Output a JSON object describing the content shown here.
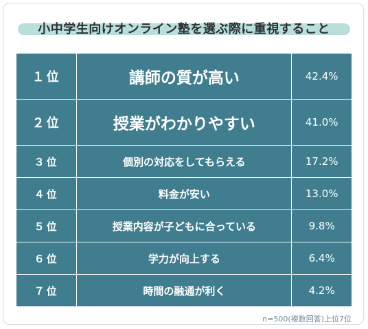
{
  "title": "小中学生向けオンライン塾を選ぶ際に重視すること",
  "rows": [
    {
      "rank": "１位",
      "item": "講師の質が高い",
      "pct": "42.4%"
    },
    {
      "rank": "２位",
      "item": "授業がわかりやすい",
      "pct": "41.0%"
    },
    {
      "rank": "３位",
      "item": "個別の対応をしてもらえる",
      "pct": "17.2%"
    },
    {
      "rank": "４位",
      "item": "料金が安い",
      "pct": "13.0%"
    },
    {
      "rank": "５位",
      "item": "授業内容が子どもに合っている",
      "pct": "9.8%"
    },
    {
      "rank": "６位",
      "item": "学力が向上する",
      "pct": "6.4%"
    },
    {
      "rank": "７位",
      "item": "時間の融通が利く",
      "pct": "4.2%"
    }
  ],
  "footnote": "n=500(複数回答)上位7位",
  "colors": {
    "table_bg": "#3f7d8f",
    "title_band": "#b8dfdc",
    "text_dark": "#2b2f33",
    "text_light": "#ffffff"
  }
}
